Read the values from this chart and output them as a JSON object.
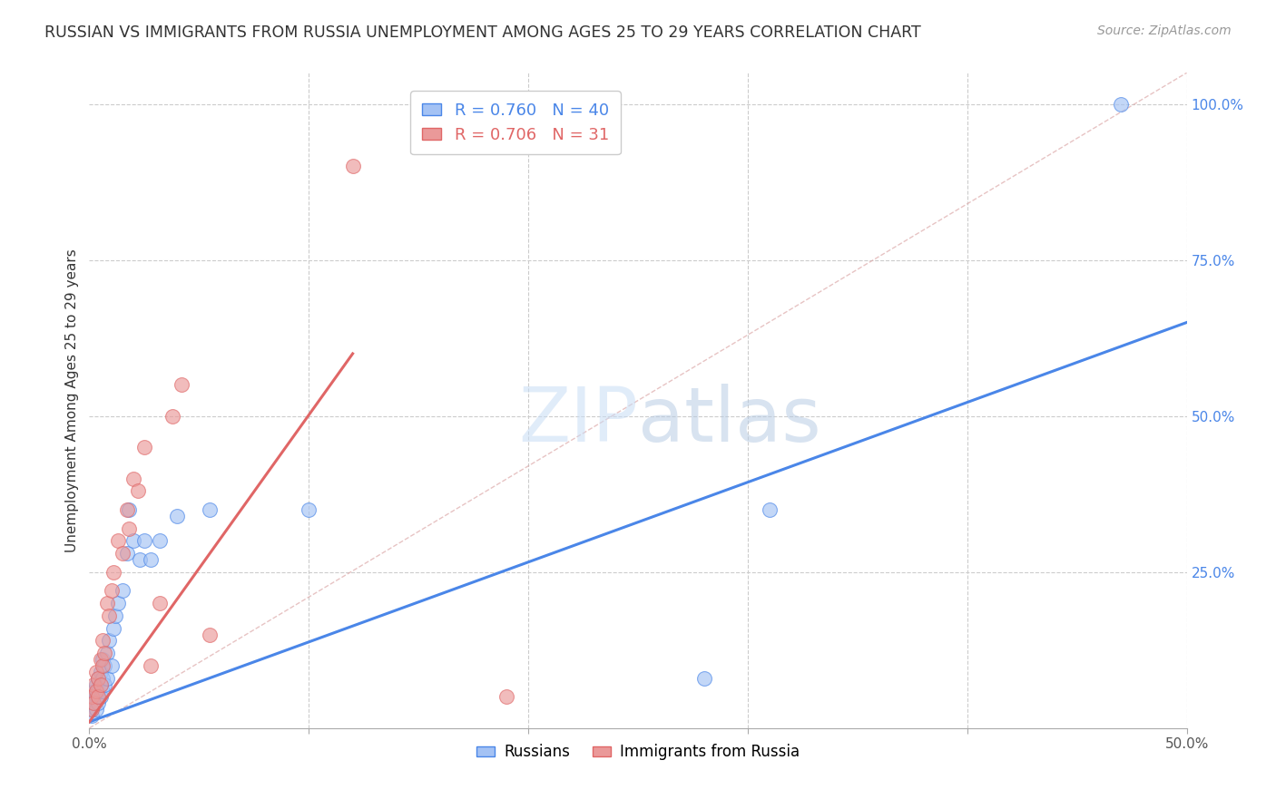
{
  "title": "RUSSIAN VS IMMIGRANTS FROM RUSSIA UNEMPLOYMENT AMONG AGES 25 TO 29 YEARS CORRELATION CHART",
  "source": "Source: ZipAtlas.com",
  "ylabel": "Unemployment Among Ages 25 to 29 years",
  "xlim": [
    0.0,
    0.5
  ],
  "ylim": [
    0.0,
    1.05
  ],
  "xticks": [
    0.0,
    0.1,
    0.2,
    0.3,
    0.4,
    0.5
  ],
  "yticks_right": [
    0.0,
    0.25,
    0.5,
    0.75,
    1.0
  ],
  "yticklabels_right": [
    "",
    "25.0%",
    "50.0%",
    "75.0%",
    "100.0%"
  ],
  "watermark_zip": "ZIP",
  "watermark_atlas": "atlas",
  "legend_r1": "R = 0.760",
  "legend_n1": "N = 40",
  "legend_r2": "R = 0.706",
  "legend_n2": "N = 31",
  "blue_fill": "#a4c2f4",
  "blue_edge": "#4a86e8",
  "pink_fill": "#ea9999",
  "pink_edge": "#e06666",
  "blue_line_color": "#4a86e8",
  "pink_line_color": "#e06666",
  "diagonal_color": "#cccccc",
  "right_axis_color": "#4a86e8",
  "russians_x": [
    0.001,
    0.001,
    0.002,
    0.002,
    0.002,
    0.003,
    0.003,
    0.003,
    0.004,
    0.004,
    0.004,
    0.005,
    0.005,
    0.005,
    0.006,
    0.006,
    0.006,
    0.007,
    0.007,
    0.008,
    0.008,
    0.009,
    0.01,
    0.011,
    0.012,
    0.013,
    0.015,
    0.017,
    0.018,
    0.02,
    0.023,
    0.025,
    0.028,
    0.032,
    0.04,
    0.055,
    0.1,
    0.28,
    0.31,
    0.47
  ],
  "russians_y": [
    0.02,
    0.03,
    0.04,
    0.05,
    0.06,
    0.03,
    0.05,
    0.07,
    0.04,
    0.06,
    0.08,
    0.05,
    0.07,
    0.09,
    0.06,
    0.08,
    0.11,
    0.07,
    0.1,
    0.08,
    0.12,
    0.14,
    0.1,
    0.16,
    0.18,
    0.2,
    0.22,
    0.28,
    0.35,
    0.3,
    0.27,
    0.3,
    0.27,
    0.3,
    0.34,
    0.35,
    0.35,
    0.08,
    0.35,
    1.0
  ],
  "immigrants_x": [
    0.001,
    0.001,
    0.002,
    0.002,
    0.003,
    0.003,
    0.004,
    0.004,
    0.005,
    0.005,
    0.006,
    0.006,
    0.007,
    0.008,
    0.009,
    0.01,
    0.011,
    0.013,
    0.015,
    0.017,
    0.018,
    0.02,
    0.022,
    0.025,
    0.028,
    0.032,
    0.038,
    0.042,
    0.055,
    0.12,
    0.19
  ],
  "immigrants_y": [
    0.03,
    0.05,
    0.04,
    0.07,
    0.06,
    0.09,
    0.05,
    0.08,
    0.07,
    0.11,
    0.1,
    0.14,
    0.12,
    0.2,
    0.18,
    0.22,
    0.25,
    0.3,
    0.28,
    0.35,
    0.32,
    0.4,
    0.38,
    0.45,
    0.1,
    0.2,
    0.5,
    0.55,
    0.15,
    0.9,
    0.05
  ],
  "blue_trend": [
    0.0,
    0.5,
    0.01,
    0.65
  ],
  "pink_trend": [
    0.0,
    0.12,
    0.01,
    0.6
  ]
}
